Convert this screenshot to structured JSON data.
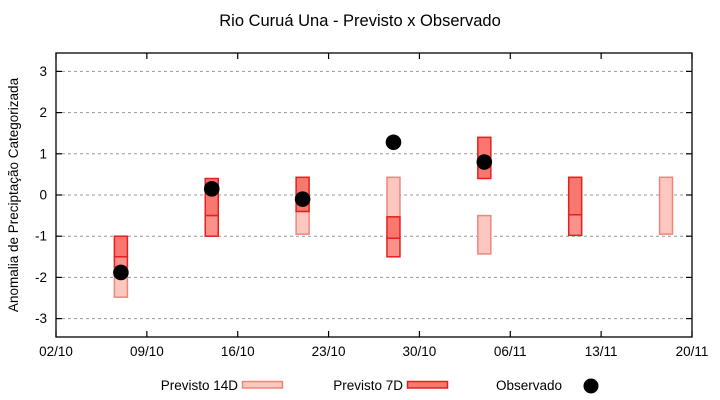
{
  "chart_data": {
    "type": "candlestick",
    "title": "Rio Curuá Una - Previsto x Observado",
    "ylabel": "Anomalia de Preciptação Categorizada",
    "x_tick_labels": [
      "02/10",
      "09/10",
      "16/10",
      "23/10",
      "30/10",
      "06/11",
      "13/11",
      "20/11"
    ],
    "x_tick_days": [
      0,
      7,
      14,
      21,
      28,
      35,
      42,
      49
    ],
    "xlim_days": [
      0,
      49
    ],
    "y_ticks": [
      3,
      2,
      1,
      0,
      -1,
      -2,
      -3
    ],
    "ylim": [
      -3.45,
      3.45
    ],
    "grid": {
      "horizontal": "dashed",
      "color": "#999999"
    },
    "legend_position": "bottom",
    "palette": {
      "previsto14_fill": "#fbc7be",
      "previsto14_border": "#ef867d",
      "previsto7_fill_upper": "#f8776e",
      "previsto7_fill_lower": "#fa918a",
      "previsto7_border": "#e62020",
      "observado": "#000000",
      "axis": "#000000",
      "grid": "#999999"
    },
    "bars": [
      {
        "date": "07/10",
        "day": 5,
        "observado": -1.88,
        "segments": [
          {
            "series": "previsto14",
            "from": -1.75,
            "to": -2.48,
            "shade": "light"
          },
          {
            "series": "previsto7",
            "from": -1.0,
            "to": -1.5,
            "shade": "upper"
          },
          {
            "series": "previsto7",
            "from": -1.5,
            "to": -1.75,
            "shade": "lower"
          }
        ]
      },
      {
        "date": "14/10",
        "day": 12,
        "observado": 0.15,
        "segments": [
          {
            "series": "previsto7",
            "from": 0.4,
            "to": -0.5,
            "shade": "upper"
          },
          {
            "series": "previsto7",
            "from": -0.5,
            "to": -1.0,
            "shade": "lower"
          }
        ]
      },
      {
        "date": "21/10",
        "day": 19,
        "observado": -0.1,
        "segments": [
          {
            "series": "previsto14",
            "from": -0.4,
            "to": -0.95,
            "shade": "light"
          },
          {
            "series": "previsto7",
            "from": 0.43,
            "to": -0.4,
            "shade": "upper"
          }
        ]
      },
      {
        "date": "28/10",
        "day": 26,
        "observado": 1.28,
        "segments": [
          {
            "series": "previsto14",
            "from": 0.43,
            "to": -0.53,
            "shade": "light"
          },
          {
            "series": "previsto7",
            "from": -0.53,
            "to": -1.05,
            "shade": "upper"
          },
          {
            "series": "previsto7",
            "from": -1.05,
            "to": -1.5,
            "shade": "lower"
          }
        ]
      },
      {
        "date": "04/11",
        "day": 33,
        "observado": 0.8,
        "segments": [
          {
            "series": "previsto7",
            "from": 1.4,
            "to": 0.4,
            "shade": "upper"
          },
          {
            "series": "previsto14",
            "from": -0.5,
            "to": -1.43,
            "shade": "light"
          }
        ]
      },
      {
        "date": "11/11",
        "day": 40,
        "observado": null,
        "segments": [
          {
            "series": "previsto7",
            "from": 0.43,
            "to": -0.48,
            "shade": "upper"
          },
          {
            "series": "previsto7",
            "from": -0.48,
            "to": -0.98,
            "shade": "lower"
          }
        ]
      },
      {
        "date": "18/11",
        "day": 47,
        "observado": null,
        "segments": [
          {
            "series": "previsto14",
            "from": 0.43,
            "to": -0.95,
            "shade": "light"
          }
        ]
      }
    ],
    "legend": [
      {
        "label": "Previsto 14D",
        "marker": "box",
        "series": "previsto14"
      },
      {
        "label": "Previsto 7D",
        "marker": "box",
        "series": "previsto7"
      },
      {
        "label": "Observado",
        "marker": "dot",
        "series": "observado"
      }
    ]
  }
}
